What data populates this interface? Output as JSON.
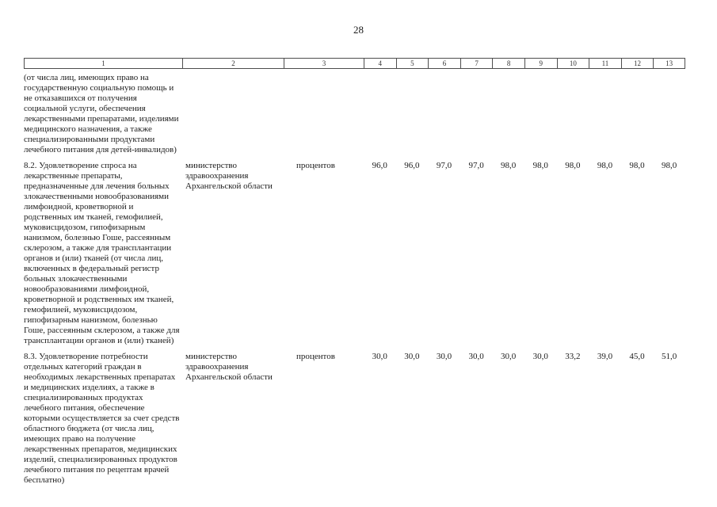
{
  "page": {
    "number": "28"
  },
  "table": {
    "header": [
      "1",
      "2",
      "3",
      "4",
      "5",
      "6",
      "7",
      "8",
      "9",
      "10",
      "11",
      "12",
      "13"
    ],
    "rows": [
      {
        "indicator": "(от числа лиц, имеющих право на государственную социальную помощь и не отказавшихся от получения социальной услуги, обеспечения лекарственными препаратами, изделиями медицинского назначения, а также специализированными продуктами лечебного питания для детей-инвалидов)",
        "executor": "",
        "unit": "",
        "values": [
          "",
          "",
          "",
          "",
          "",
          "",
          "",
          "",
          "",
          ""
        ]
      },
      {
        "indicator": "8.2. Удовлетворение спроса на лекарственные препараты, предназначенные для лечения больных злокачественными новообразованиями лимфоидной, кроветворной и родственных им тканей, гемофилией, муковисцидозом, гипофизарным нанизмом, болезнью Гоше, рассеянным склерозом, а также для трансплантации органов и (или) тканей (от числа лиц, включенных в федеральный регистр больных злокачественными новообразованиями лимфоидной, кроветворной и родственных им тканей, гемофилией, муковисцидозом, гипофизарным нанизмом, болезнью Гоше, рассеянным склерозом, а также для трансплантации органов и (или) тканей)",
        "executor": "министерство здравоохранения Архангельской области",
        "unit": "процентов",
        "values": [
          "96,0",
          "96,0",
          "97,0",
          "97,0",
          "98,0",
          "98,0",
          "98,0",
          "98,0",
          "98,0",
          "98,0"
        ]
      },
      {
        "indicator": "8.3. Удовлетворение потребности отдельных категорий граждан в необходимых лекарственных препаратах и медицинских изделиях, а также в специализированных продуктах лечебного питания, обеспечение которыми осуществляется за счет средств областного бюджета (от числа лиц, имеющих право на получение лекарственных препаратов, медицинских изделий, специализированных продуктов лечебного питания по рецептам врачей бесплатно)",
        "executor": "министерство здравоохранения Архангельской области",
        "unit": "процентов",
        "values": [
          "30,0",
          "30,0",
          "30,0",
          "30,0",
          "30,0",
          "30,0",
          "33,2",
          "39,0",
          "45,0",
          "51,0"
        ]
      }
    ]
  }
}
